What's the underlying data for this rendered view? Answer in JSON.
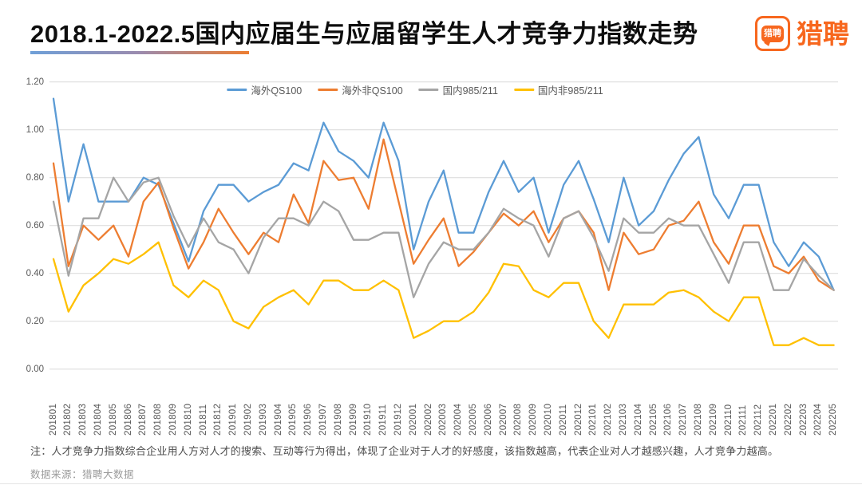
{
  "header": {
    "title": "2018.1-2022.5国内应届生与应届留学生人才竞争力指数走势",
    "logo": {
      "icon_text": "猎聘",
      "wordmark": "猎聘",
      "brand_color": "#F7671E"
    }
  },
  "chart_data": {
    "type": "line",
    "title": "2018.1-2022.5国内应届生与应届留学生人才竞争力指数走势",
    "xlabel": "",
    "ylabel": "",
    "ylim": [
      0.0,
      1.2
    ],
    "y_ticks": [
      "0.00",
      "0.20",
      "0.40",
      "0.60",
      "0.80",
      "1.00",
      "1.20"
    ],
    "grid": true,
    "legend_position": "top",
    "grid_color": "#D9D9D9",
    "x": [
      "201801",
      "201802",
      "201803",
      "201804",
      "201805",
      "201806",
      "201807",
      "201808",
      "201809",
      "201810",
      "201811",
      "201812",
      "201901",
      "201902",
      "201903",
      "201904",
      "201905",
      "201906",
      "201907",
      "201908",
      "201909",
      "201910",
      "201911",
      "201912",
      "202001",
      "202002",
      "202003",
      "202004",
      "202005",
      "202006",
      "202007",
      "202008",
      "202009",
      "202010",
      "202011",
      "202012",
      "202101",
      "202102",
      "202103",
      "202104",
      "202105",
      "202106",
      "202107",
      "202108",
      "202109",
      "202110",
      "202111",
      "202112",
      "202201",
      "202202",
      "202203",
      "202204",
      "202205"
    ],
    "series": [
      {
        "name": "海外QS100",
        "color": "#5B9BD5",
        "values": [
          1.13,
          0.7,
          0.94,
          0.7,
          0.7,
          0.7,
          0.8,
          0.77,
          0.61,
          0.45,
          0.66,
          0.77,
          0.77,
          0.7,
          0.74,
          0.77,
          0.86,
          0.83,
          1.03,
          0.91,
          0.87,
          0.8,
          1.03,
          0.87,
          0.5,
          0.7,
          0.83,
          0.57,
          0.57,
          0.74,
          0.87,
          0.74,
          0.8,
          0.57,
          0.77,
          0.87,
          0.71,
          0.53,
          0.8,
          0.6,
          0.66,
          0.79,
          0.9,
          0.97,
          0.73,
          0.63,
          0.77,
          0.77,
          0.53,
          0.43,
          0.53,
          0.47,
          0.33
        ]
      },
      {
        "name": "海外非QS100",
        "color": "#ED7D31",
        "values": [
          0.86,
          0.43,
          0.6,
          0.54,
          0.6,
          0.47,
          0.7,
          0.78,
          0.59,
          0.42,
          0.53,
          0.67,
          0.57,
          0.48,
          0.57,
          0.53,
          0.73,
          0.61,
          0.87,
          0.79,
          0.8,
          0.67,
          0.96,
          0.7,
          0.44,
          0.54,
          0.63,
          0.43,
          0.49,
          0.57,
          0.65,
          0.6,
          0.66,
          0.53,
          0.63,
          0.66,
          0.57,
          0.33,
          0.57,
          0.48,
          0.5,
          0.6,
          0.62,
          0.7,
          0.53,
          0.44,
          0.6,
          0.6,
          0.43,
          0.4,
          0.47,
          0.37,
          0.33
        ]
      },
      {
        "name": "国内985/211",
        "color": "#A5A5A5",
        "values": [
          0.7,
          0.39,
          0.63,
          0.63,
          0.8,
          0.7,
          0.78,
          0.8,
          0.64,
          0.51,
          0.63,
          0.53,
          0.5,
          0.4,
          0.55,
          0.63,
          0.63,
          0.6,
          0.7,
          0.66,
          0.54,
          0.54,
          0.57,
          0.57,
          0.3,
          0.44,
          0.53,
          0.5,
          0.5,
          0.57,
          0.67,
          0.63,
          0.6,
          0.47,
          0.63,
          0.66,
          0.55,
          0.41,
          0.63,
          0.57,
          0.57,
          0.63,
          0.6,
          0.6,
          0.48,
          0.36,
          0.53,
          0.53,
          0.33,
          0.33,
          0.46,
          0.39,
          0.33
        ]
      },
      {
        "name": "国内非985/211",
        "color": "#FFC000",
        "values": [
          0.46,
          0.24,
          0.35,
          0.4,
          0.46,
          0.44,
          0.48,
          0.53,
          0.35,
          0.3,
          0.37,
          0.33,
          0.2,
          0.17,
          0.26,
          0.3,
          0.33,
          0.27,
          0.37,
          0.37,
          0.33,
          0.33,
          0.37,
          0.33,
          0.13,
          0.16,
          0.2,
          0.2,
          0.24,
          0.32,
          0.44,
          0.43,
          0.33,
          0.3,
          0.36,
          0.36,
          0.2,
          0.13,
          0.27,
          0.27,
          0.27,
          0.32,
          0.33,
          0.3,
          0.24,
          0.2,
          0.3,
          0.3,
          0.1,
          0.1,
          0.13,
          0.1,
          0.1
        ]
      }
    ]
  },
  "footer": {
    "note": "注：人才竞争力指数综合企业用人方对人才的搜索、互动等行为得出，体现了企业对于人才的好感度，该指数越高，代表企业对人才越感兴趣，人才竞争力越高。",
    "source": "数据来源：猎聘大数据"
  }
}
